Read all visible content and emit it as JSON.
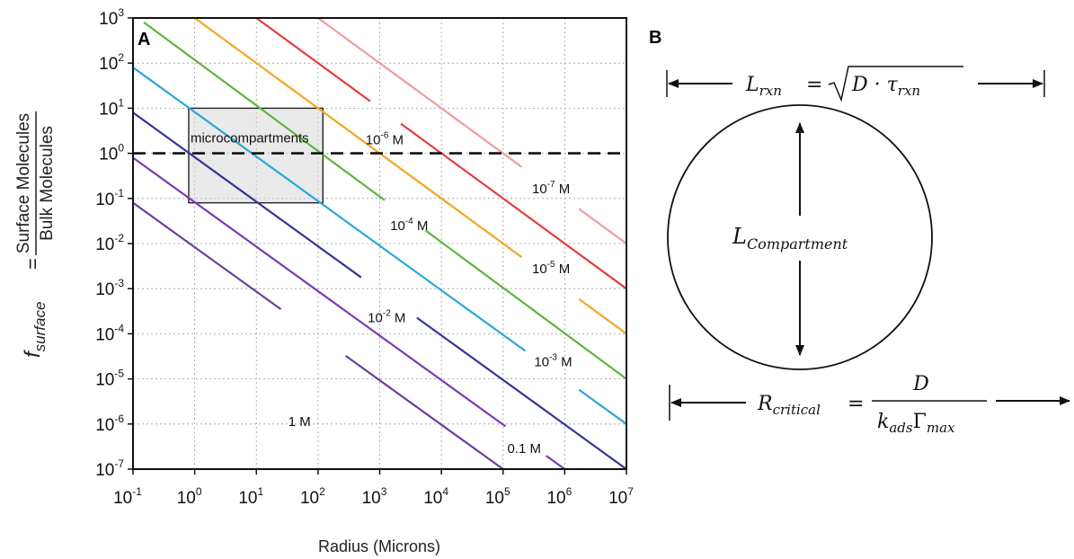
{
  "chart_data": {
    "type": "line",
    "panel_label": "A",
    "xlabel": "Radius (Microns)",
    "ylabel": {
      "symbol": "f",
      "subscript": "surface",
      "equals": "=",
      "numerator": "Surface Molecules",
      "denominator": "Bulk Molecules"
    },
    "x_scale": "log",
    "y_scale": "log",
    "xlim": [
      0.1,
      10000000
    ],
    "ylim": [
      1e-07,
      1000
    ],
    "grid": true,
    "x_ticks": [
      {
        "base": "10",
        "exp": "-1",
        "value": 0.1
      },
      {
        "base": "10",
        "exp": "0",
        "value": 1
      },
      {
        "base": "10",
        "exp": "1",
        "value": 10
      },
      {
        "base": "10",
        "exp": "2",
        "value": 100
      },
      {
        "base": "10",
        "exp": "3",
        "value": 1000
      },
      {
        "base": "10",
        "exp": "4",
        "value": 10000
      },
      {
        "base": "10",
        "exp": "5",
        "value": 100000
      },
      {
        "base": "10",
        "exp": "6",
        "value": 1000000
      },
      {
        "base": "10",
        "exp": "7",
        "value": 10000000
      }
    ],
    "y_ticks": [
      {
        "base": "10",
        "exp": "3",
        "value": 1000
      },
      {
        "base": "10",
        "exp": "2",
        "value": 100
      },
      {
        "base": "10",
        "exp": "1",
        "value": 10
      },
      {
        "base": "10",
        "exp": "0",
        "value": 1
      },
      {
        "base": "10",
        "exp": "-1",
        "value": 0.1
      },
      {
        "base": "10",
        "exp": "-2",
        "value": 0.01
      },
      {
        "base": "10",
        "exp": "-3",
        "value": 0.001
      },
      {
        "base": "10",
        "exp": "-4",
        "value": 0.0001
      },
      {
        "base": "10",
        "exp": "-5",
        "value": 1e-05
      },
      {
        "base": "10",
        "exp": "-6",
        "value": 1e-06
      },
      {
        "base": "10",
        "exp": "-7",
        "value": 1e-07
      }
    ],
    "series": [
      {
        "label": "1 M",
        "label_base": "1",
        "label_exp": "",
        "label_unit": "M",
        "color": "#6a3ea0",
        "x": [
          0.1,
          100000
        ],
        "y": [
          0.08,
          1e-07
        ],
        "label_at": [
          50,
          9e-07
        ],
        "gap": [
          [
            25,
            280
          ]
        ]
      },
      {
        "label": "0.1 M",
        "label_base": "0.1",
        "label_exp": "",
        "label_unit": "M",
        "color": "#7a3ab8",
        "x": [
          0.1,
          1000000
        ],
        "y": [
          0.8,
          1e-07
        ],
        "label_at": [
          220000,
          2.3e-07
        ],
        "gap": [
          [
            110000,
            500000
          ]
        ]
      },
      {
        "label": "10^-2 M",
        "label_base": "10",
        "label_exp": "-2",
        "label_unit": "M",
        "color": "#34359a",
        "x": [
          0.1,
          10000000
        ],
        "y": [
          8,
          1e-07
        ],
        "label_at": [
          1300,
          0.00018
        ],
        "gap": [
          [
            500,
            4000
          ]
        ]
      },
      {
        "label": "10^-3 M",
        "label_base": "10",
        "label_exp": "-3",
        "label_unit": "M",
        "color": "#2aa7dc",
        "x": [
          0.1,
          10000000
        ],
        "y": [
          80,
          1e-06
        ],
        "label_at": [
          650000,
          1.9e-05
        ],
        "gap": [
          [
            230000,
            1700000
          ]
        ]
      },
      {
        "label": "10^-4 M",
        "label_base": "10",
        "label_exp": "-4",
        "label_unit": "M",
        "color": "#5db53e",
        "x": [
          0.15,
          10000000
        ],
        "y": [
          800,
          1e-05
        ],
        "label_at": [
          3000,
          0.02
        ],
        "gap": [
          [
            1200,
            5500
          ]
        ]
      },
      {
        "label": "10^-5 M",
        "label_base": "10",
        "label_exp": "-5",
        "label_unit": "M",
        "color": "#f5a51f",
        "x": [
          1,
          10000000
        ],
        "y": [
          1000,
          0.0001
        ],
        "label_at": [
          600000,
          0.0022
        ],
        "gap": [
          [
            200000,
            1700000
          ]
        ]
      },
      {
        "label": "10^-6 M",
        "label_base": "10",
        "label_exp": "-6",
        "label_unit": "M",
        "color": "#e63b3b",
        "x": [
          10,
          10000000
        ],
        "y": [
          1000,
          0.001
        ],
        "label_at": [
          1200,
          1.6
        ],
        "gap": [
          [
            700,
            2200
          ]
        ]
      },
      {
        "label": "10^-7 M",
        "label_base": "10",
        "label_exp": "-7",
        "label_unit": "M",
        "color": "#f29aa0",
        "x": [
          100,
          10000000
        ],
        "y": [
          1000,
          0.01
        ],
        "label_at": [
          600000,
          0.13
        ],
        "gap": [
          [
            200000,
            1700000
          ]
        ]
      }
    ],
    "reference_line": {
      "y": 1,
      "style": "dashed"
    },
    "annotation_box": {
      "label": "microcompartments",
      "x": [
        0.8,
        120
      ],
      "y": [
        0.08,
        10
      ]
    }
  },
  "panel_b": {
    "panel_label": "B",
    "top_arrow": {
      "symbol": "L",
      "subscript": "rxn",
      "equals": "=",
      "radicand": "D · τ",
      "radicand_subscript": "rxn"
    },
    "circle_label": {
      "symbol": "L",
      "subscript": "Compartment"
    },
    "bottom_arrow": {
      "symbol": "R",
      "subscript": "critical",
      "equals": "=",
      "numerator": "D",
      "denominator": "k",
      "denominator_sub1": "ads",
      "denominator_mid": "Γ",
      "denominator_sub2": "max"
    }
  }
}
